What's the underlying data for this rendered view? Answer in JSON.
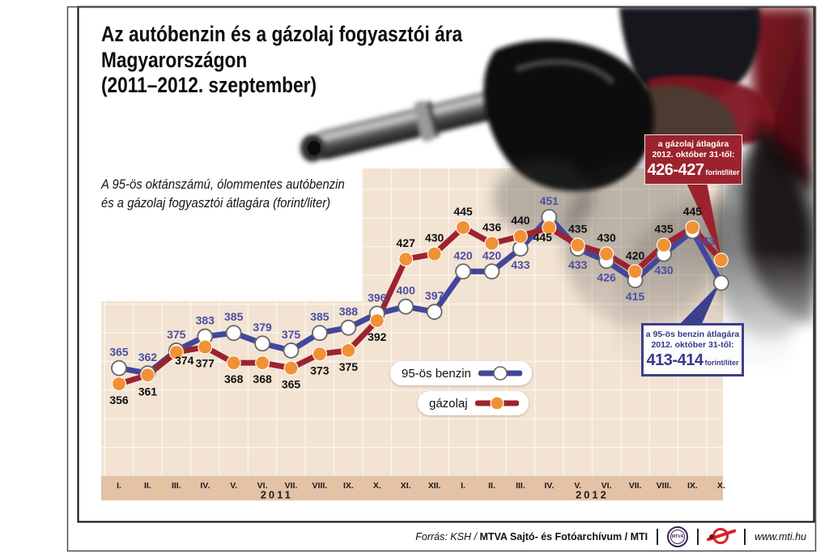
{
  "page": {
    "title_lines": [
      "Az autóbenzin és a gázolaj fogyasztói ára",
      "Magyarországon",
      "(2011–2012. szeptember)"
    ],
    "subtitle_lines": [
      "A 95-ös oktánszámú, ólommentes autóbenzin",
      "és a gázolaj fogyasztói átlagára (forint/liter)"
    ]
  },
  "chart_data": {
    "type": "line",
    "unit": "forint/liter",
    "x_years": [
      {
        "year": "2011",
        "months": [
          "I.",
          "II.",
          "III.",
          "IV.",
          "V.",
          "VI.",
          "VII.",
          "VIII.",
          "IX.",
          "X.",
          "XI.",
          "XII."
        ]
      },
      {
        "year": "2012",
        "months": [
          "I.",
          "II.",
          "III.",
          "IV.",
          "V.",
          "VI.",
          "VII.",
          "VIII.",
          "IX.",
          "X."
        ]
      }
    ],
    "series": [
      {
        "name": "95-ös benzin",
        "line_color": "#41479b",
        "label_color": "#4b4ea3",
        "marker": "white-dot",
        "values": [
          365,
          362,
          375,
          383,
          385,
          379,
          375,
          385,
          388,
          396,
          400,
          397,
          420,
          420,
          433,
          451,
          433,
          426,
          415,
          430,
          443,
          null
        ],
        "october_estimate": 413.5,
        "label_pos": [
          "a",
          "a",
          "a",
          "a",
          "a",
          "a",
          "a",
          "a",
          "a",
          "a",
          "a",
          "a",
          "a",
          "a",
          "b",
          "a",
          "b",
          "b",
          "b",
          "b",
          "b",
          null
        ],
        "label_offsets": {
          "20": [
            16,
            -8
          ]
        }
      },
      {
        "name": "gázolaj",
        "line_color": "#9c232e",
        "label_color": "#101010",
        "marker": "orange-dot",
        "values": [
          356,
          361,
          374,
          377,
          368,
          368,
          365,
          373,
          375,
          392,
          427,
          430,
          445,
          436,
          440,
          445,
          435,
          430,
          420,
          435,
          445,
          null
        ],
        "october_estimate": 426.5,
        "label_pos": [
          "b",
          "b",
          "b",
          "b",
          "b",
          "b",
          "b",
          "b",
          "b",
          "b",
          "a",
          "a",
          "a",
          "a",
          "a",
          "b",
          "a",
          "a",
          "a",
          "a",
          "a",
          null
        ],
        "label_offsets": {
          "2": [
            10,
            -10
          ],
          "15": [
            -8,
            -8
          ]
        }
      }
    ],
    "ylim": [
      303,
      480
    ],
    "grid": "on",
    "legend_position": "inside-lower-middle"
  },
  "legend": {
    "items": [
      {
        "label": "95-ös benzin"
      },
      {
        "label": "gázolaj"
      }
    ]
  },
  "callouts": {
    "gazolaj": {
      "line1": "a gázolaj átlagára",
      "line2": "2012. október 31-től:",
      "value": "426-427",
      "unit": "forint/liter"
    },
    "benzin": {
      "line1": "a 95-ös benzin átlagára",
      "line2": "2012. október 31-től:",
      "value": "413-414",
      "unit": "forint/liter"
    }
  },
  "footer": {
    "source_prefix": "Forrás: KSH /",
    "source_bold": "MTVA Sajtó- és Fotóarchívum / MTI",
    "mtva_logo": "MTVA",
    "website": "www.mti.hu"
  },
  "colors": {
    "plot_bg": "#f2e3d3",
    "axis_band": "#e4c2a6",
    "benzin_blue": "#41479b",
    "gazolaj_red": "#9c232e",
    "marker_orange": "#f19136",
    "callout_red_bg": "#9c232e",
    "callout_blue_border": "#3b3f8e"
  }
}
